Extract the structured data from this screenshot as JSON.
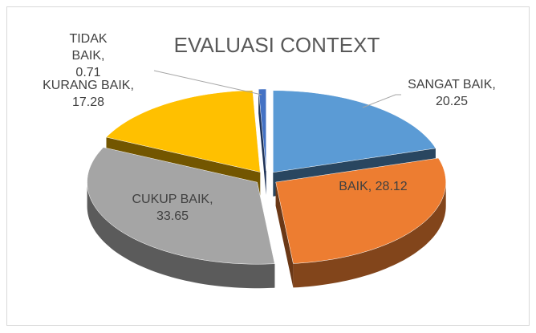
{
  "chart_data": {
    "type": "pie3d",
    "title": "EVALUASI CONTEXT",
    "values": [
      20.25,
      28.12,
      33.65,
      17.28,
      0.71
    ],
    "value_labels": [
      "SANGAT BAIK, 20.25",
      "BAIK, 28.12",
      "CUKUP BAIK, 33.65",
      "KURANG BAIK, 17.28",
      "TIDAK BAIK, 0.71"
    ],
    "colors": [
      "#5b9bd5",
      "#ed7d31",
      "#a5a5a5",
      "#ffc000",
      "#4472c4"
    ]
  }
}
